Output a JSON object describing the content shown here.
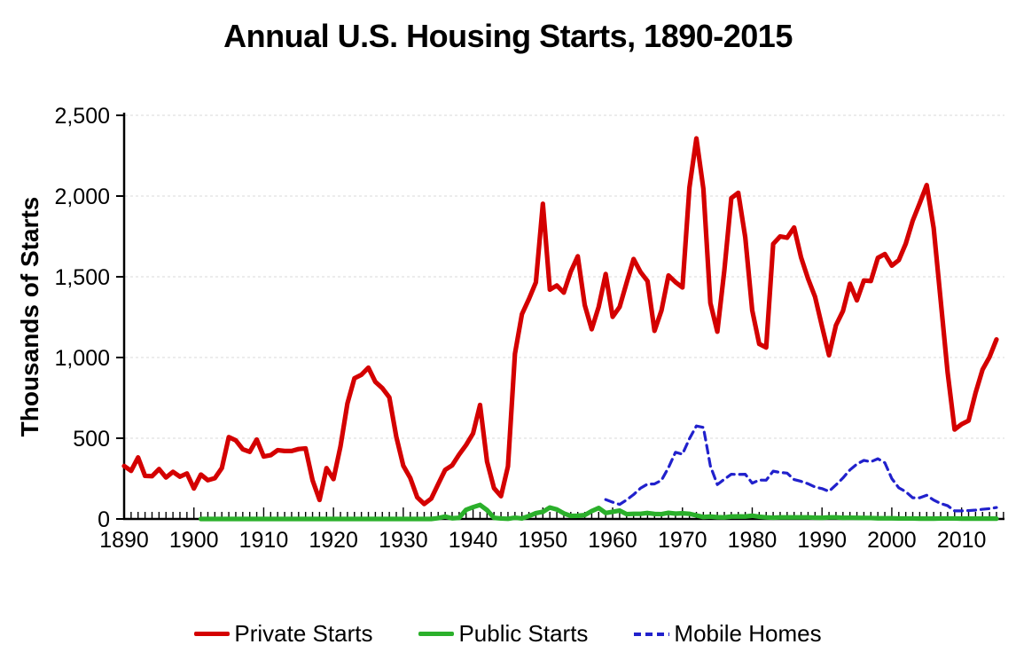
{
  "chart_data": {
    "type": "line",
    "title": "Annual U.S. Housing Starts, 1890-2015",
    "ylabel": "Thousands of Starts",
    "xlabel": "",
    "xlim": [
      1890,
      2015
    ],
    "ylim": [
      0,
      2500
    ],
    "grid": "horizontal-dashed-gray",
    "gridline_color": "#D9D9D9",
    "axis_color": "#000000",
    "legend_position": "bottom-center",
    "x_ticks": [
      1890,
      1900,
      1910,
      1920,
      1930,
      1940,
      1950,
      1960,
      1970,
      1980,
      1990,
      2000,
      2010
    ],
    "minor_x_ticks_every_year": true,
    "y_ticks": [
      {
        "value": 0,
        "label": "0"
      },
      {
        "value": 500,
        "label": "500"
      },
      {
        "value": 1000,
        "label": "1,000"
      },
      {
        "value": 1500,
        "label": "1,500"
      },
      {
        "value": 2000,
        "label": "2,000"
      },
      {
        "value": 2500,
        "label": "2,500"
      }
    ],
    "series": [
      {
        "name": "Private Starts",
        "color": "#D40000",
        "line_style": "solid",
        "start_year": 1890,
        "values": [
          328,
          298,
          381,
          267,
          265,
          309,
          257,
          292,
          262,
          282,
          189,
          275,
          240,
          253,
          315,
          507,
          487,
          432,
          416,
          492,
          387,
          395,
          426,
          421,
          421,
          433,
          437,
          240,
          118,
          315,
          247,
          449,
          716,
          871,
          893,
          937,
          849,
          810,
          753,
          509,
          330,
          254,
          134,
          93,
          126,
          216,
          304,
          332,
          399,
          458,
          530,
          706,
          356,
          191,
          141,
          326,
          1023,
          1268,
          1362,
          1466,
          1952,
          1420,
          1446,
          1402,
          1532,
          1627,
          1325,
          1175,
          1314,
          1517,
          1252,
          1313,
          1463,
          1610,
          1529,
          1473,
          1165,
          1292,
          1508,
          1467,
          1434,
          2052,
          2357,
          2045,
          1338,
          1160,
          1538,
          1987,
          2020,
          1745,
          1292,
          1084,
          1062,
          1703,
          1750,
          1742,
          1805,
          1620,
          1488,
          1376,
          1193,
          1014,
          1200,
          1288,
          1457,
          1354,
          1477,
          1474,
          1617,
          1641,
          1569,
          1603,
          1705,
          1848,
          1956,
          2068,
          1801,
          1355,
          906,
          554,
          587,
          609,
          781,
          925,
          1003,
          1112
        ]
      },
      {
        "name": "Public Starts",
        "color": "#2BB02B",
        "line_style": "solid",
        "start_year": 1901,
        "values": [
          0,
          0,
          0,
          0,
          0,
          0,
          0,
          0,
          0,
          0,
          0,
          0,
          0,
          0,
          0,
          0,
          0,
          0,
          0,
          0,
          0,
          0,
          0,
          0,
          0,
          0,
          0,
          0,
          0,
          0,
          0,
          0,
          0,
          0,
          5,
          15,
          4,
          7,
          57,
          73,
          87,
          55,
          7,
          3,
          1,
          8,
          3,
          18,
          36,
          44,
          71,
          59,
          35,
          19,
          20,
          24,
          49,
          68,
          37,
          44,
          52,
          30,
          32,
          32,
          37,
          31,
          30,
          38,
          33,
          35,
          32,
          22,
          12,
          15,
          11,
          10,
          15,
          16,
          15,
          20,
          14,
          10,
          8,
          10,
          10,
          10,
          10,
          10,
          8,
          7,
          10,
          10,
          7,
          8,
          7,
          6,
          6,
          4,
          4,
          4,
          3,
          3,
          3,
          2,
          2,
          2,
          3,
          3,
          3,
          2,
          2,
          2,
          2,
          2,
          2
        ]
      },
      {
        "name": "Mobile Homes",
        "color": "#2121CC",
        "line_style": "dashed",
        "start_year": 1959,
        "values": [
          120,
          104,
          90,
          118,
          151,
          191,
          216,
          217,
          240,
          318,
          413,
          401,
          497,
          576,
          567,
          329,
          213,
          246,
          277,
          276,
          277,
          222,
          241,
          240,
          296,
          288,
          284,
          244,
          233,
          218,
          198,
          188,
          171,
          211,
          254,
          304,
          340,
          363,
          354,
          373,
          348,
          250,
          193,
          169,
          131,
          131,
          147,
          117,
          96,
          82,
          50,
          50,
          52,
          55,
          60,
          64,
          71
        ]
      }
    ]
  }
}
